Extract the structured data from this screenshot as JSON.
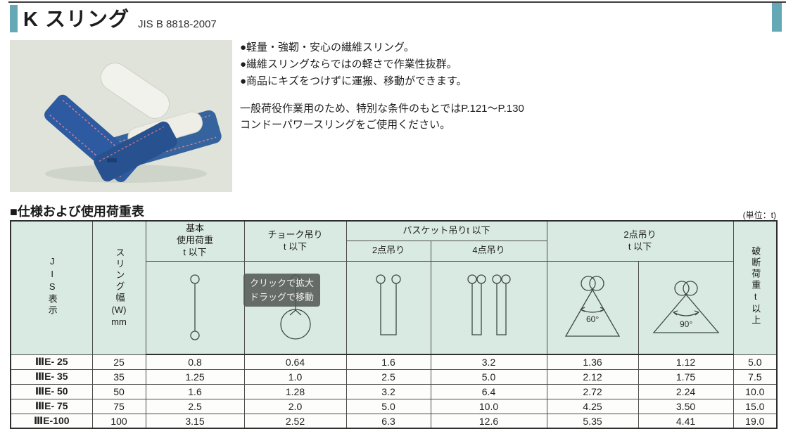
{
  "page": {
    "title": "K スリング",
    "subtitle": "JIS B 8818-2007"
  },
  "accent_colors": {
    "tab_teal": "#66a9b6",
    "table_header_mint": "#d9eae2",
    "sling_blue": "#2d5aa0"
  },
  "description": {
    "bullets": [
      "●軽量・強靭・安心の繊維スリング。",
      "●繊維スリングならではの軽さで作業性抜群。",
      "●商品にキズをつけずに運搬、移動ができます。"
    ],
    "note_line1": "一般荷役作業用のため、特別な条件のもとではP.121～P.130",
    "note_line2": "コンドーパワースリングをご使用ください。"
  },
  "tooltip": {
    "line1": "クリックで拡大",
    "line2": "ドラッグで移動"
  },
  "table_section": {
    "heading": "■仕様および使用荷重表",
    "unit_note": "(単位：t)"
  },
  "table": {
    "headers": {
      "jis": "JIS表示",
      "sling_width_main": "スリング幅",
      "sling_width_w": "(W)",
      "sling_width_unit": "mm",
      "basic": "基本\n使用荷重\nt 以下",
      "choke": "チョーク吊り\nt 以下",
      "basket_group": "バスケット吊りt 以下",
      "basket_2pt": "2点吊り",
      "basket_4pt": "4点吊り",
      "two_leg_group": "2点吊り\nt 以下",
      "break_load": "破断荷重t以上"
    },
    "icon_labels": {
      "angle_60": "60°",
      "angle_90": "90°"
    },
    "column_keys": [
      "jis-display-cell",
      "sling-width-cell",
      "basic-load-cell",
      "choke-load-cell",
      "basket-2pt-load-cell",
      "basket-4pt-load-cell",
      "two-leg-60-load-cell",
      "two-leg-90-load-cell",
      "break-load-cell"
    ],
    "rows": [
      [
        "ⅢE- 25",
        "25",
        "0.8",
        "0.64",
        "1.6",
        "3.2",
        "1.36",
        "1.12",
        "5.0"
      ],
      [
        "ⅢE- 35",
        "35",
        "1.25",
        "1.0",
        "2.5",
        "5.0",
        "2.12",
        "1.75",
        "7.5"
      ],
      [
        "ⅢE- 50",
        "50",
        "1.6",
        "1.28",
        "3.2",
        "6.4",
        "2.72",
        "2.24",
        "10.0"
      ],
      [
        "ⅢE- 75",
        "75",
        "2.5",
        "2.0",
        "5.0",
        "10.0",
        "4.25",
        "3.50",
        "15.0"
      ],
      [
        "ⅢE-100",
        "100",
        "3.15",
        "2.52",
        "6.3",
        "12.6",
        "5.35",
        "4.41",
        "19.0"
      ]
    ]
  }
}
